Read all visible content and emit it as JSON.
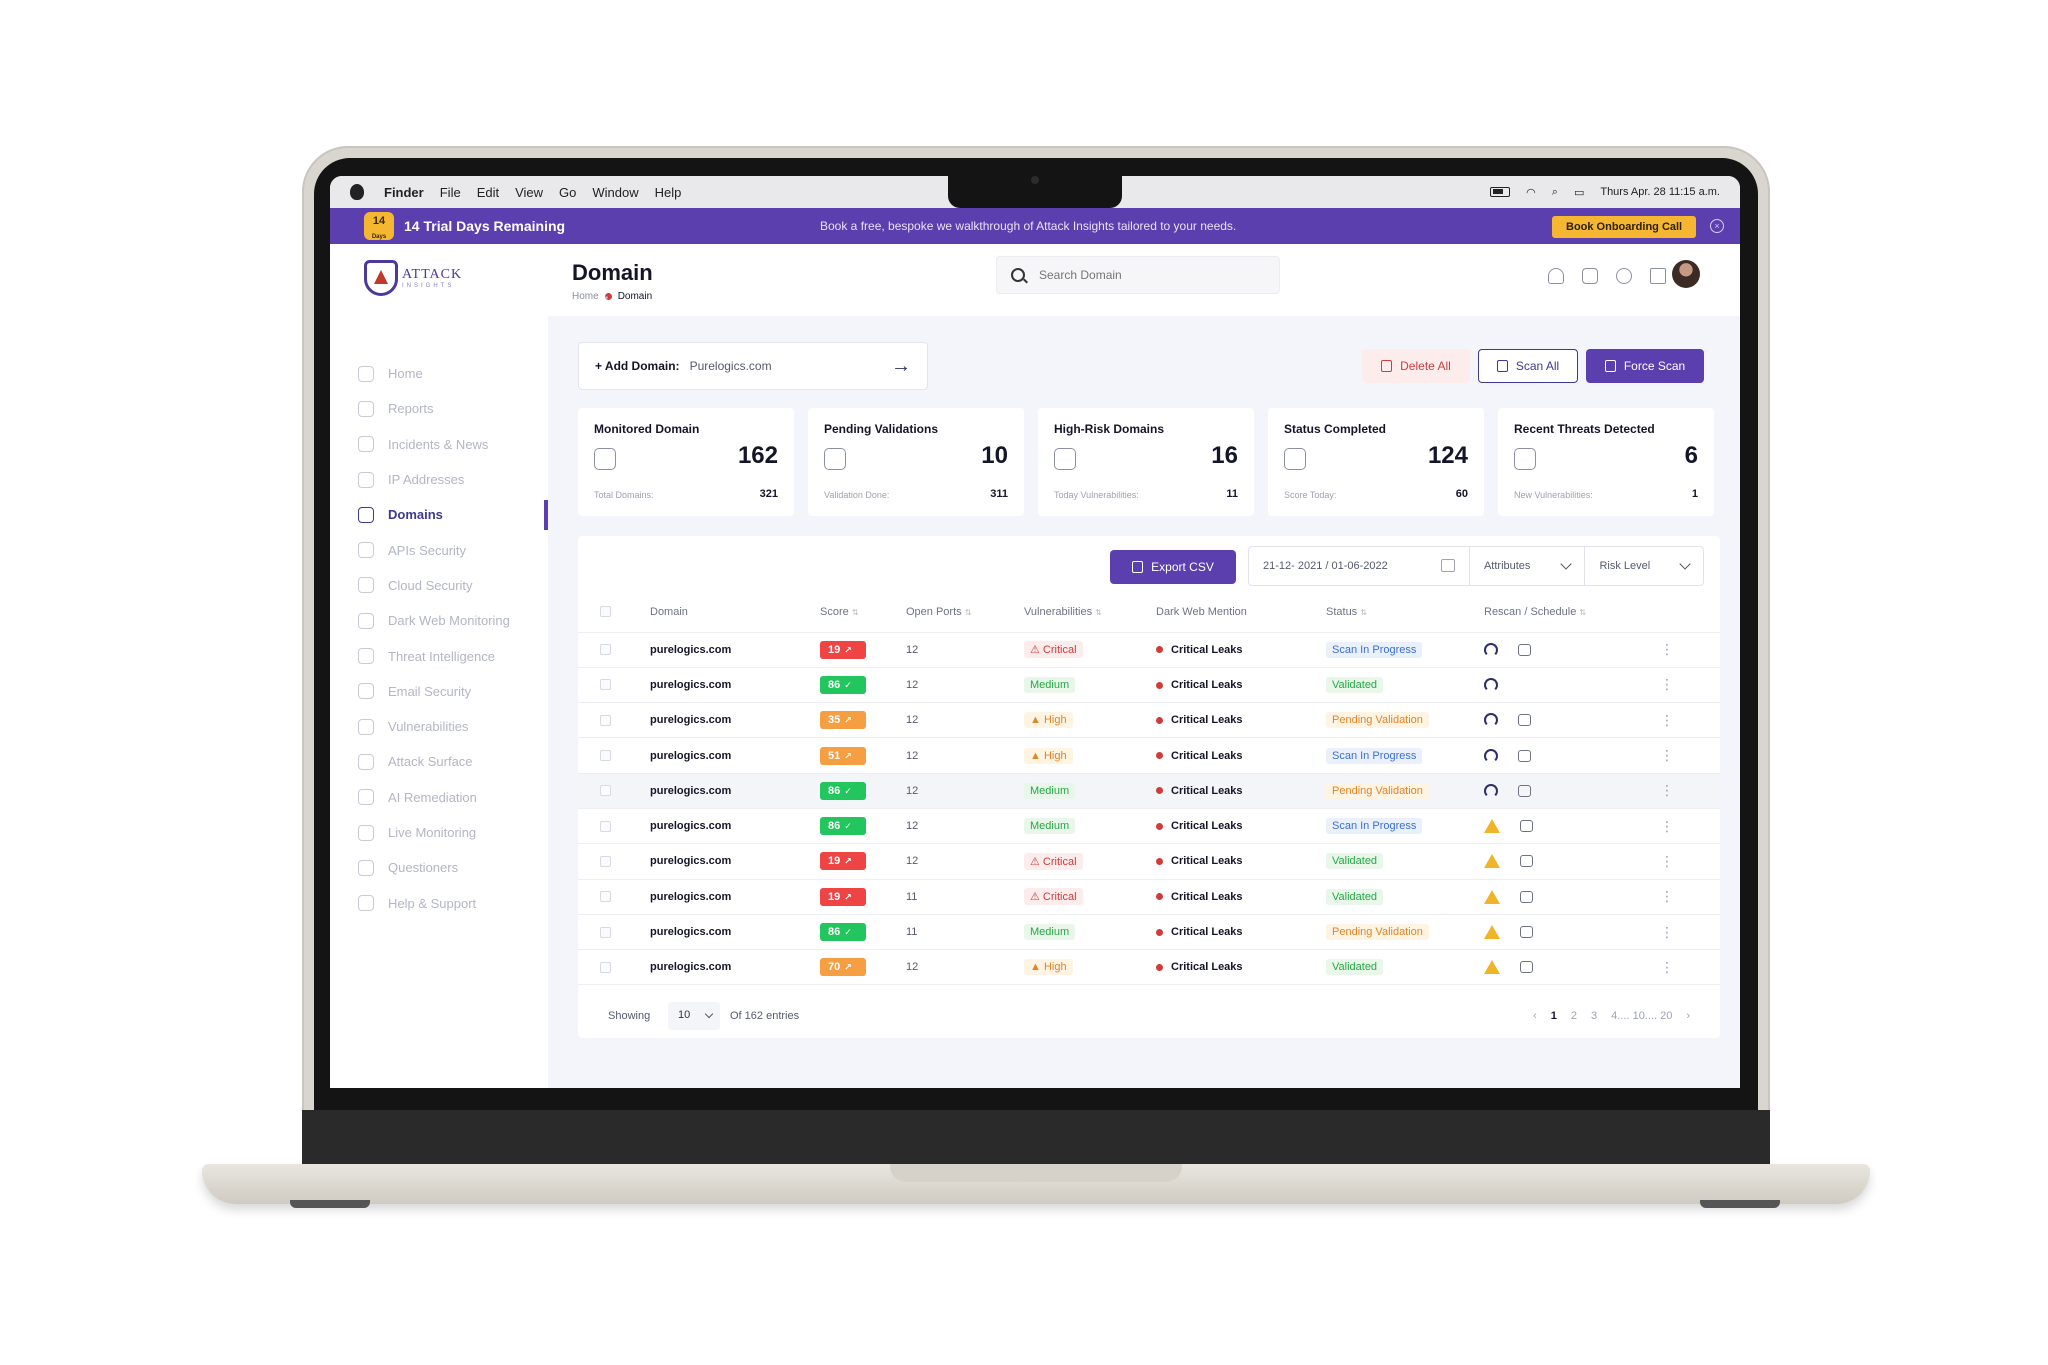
{
  "menubar": {
    "items": [
      "Finder",
      "File",
      "Edit",
      "View",
      "Go",
      "Window",
      "Help"
    ],
    "datetime": "Thurs Apr. 28 11:15 a.m."
  },
  "banner": {
    "badge_number": "14",
    "badge_unit": "Days",
    "trial_text": "14 Trial Days Remaining",
    "message": "Book a free, bespoke we walkthrough of Attack Insights tailored to your needs.",
    "cta": "Book Onboarding Call",
    "close": "×"
  },
  "logo": {
    "word": "ATTACK",
    "sub": "INSIGHTS"
  },
  "sidebar": {
    "items": [
      {
        "label": "Home",
        "active": false
      },
      {
        "label": "Reports",
        "active": false
      },
      {
        "label": "Incidents & News",
        "active": false
      },
      {
        "label": "IP Addresses",
        "active": false
      },
      {
        "label": "Domains",
        "active": true
      },
      {
        "label": "APIs Security",
        "active": false
      },
      {
        "label": "Cloud Security",
        "active": false
      },
      {
        "label": "Dark Web Monitoring",
        "active": false
      },
      {
        "label": "Threat Intelligence",
        "active": false
      },
      {
        "label": "Email Security",
        "active": false
      },
      {
        "label": "Vulnerabilities",
        "active": false
      },
      {
        "label": "Attack Surface",
        "active": false
      },
      {
        "label": "AI Remediation",
        "active": false
      },
      {
        "label": "Live Monitoring",
        "active": false
      },
      {
        "label": "Questioners",
        "active": false
      },
      {
        "label": "Help & Support",
        "active": false
      }
    ]
  },
  "header": {
    "title": "Domain",
    "breadcrumb": {
      "home": "Home",
      "current": "Domain",
      "separator": "•"
    },
    "search_placeholder": "Search Domain"
  },
  "add_domain": {
    "label": "+ Add Domain:",
    "value": "Purelogics.com",
    "arrow": "→"
  },
  "actions": {
    "delete_all": "Delete All",
    "scan_all": "Scan All",
    "force_scan": "Force Scan"
  },
  "stats": [
    {
      "title": "Monitored Domain",
      "value": "162",
      "foot_label": "Total Domains:",
      "foot_value": "321"
    },
    {
      "title": "Pending Validations",
      "value": "10",
      "foot_label": "Validation Done:",
      "foot_value": "311"
    },
    {
      "title": "High-Risk Domains",
      "value": "16",
      "foot_label": "Today Vulnerabilities:",
      "foot_value": "11"
    },
    {
      "title": "Status Completed",
      "value": "124",
      "foot_label": "Score Today:",
      "foot_value": "60"
    },
    {
      "title": "Recent Threats Detected",
      "value": "6",
      "foot_label": "New Vulnerabilities:",
      "foot_value": "1"
    }
  ],
  "toolbar": {
    "export": "Export CSV",
    "date_range": "21-12- 2021  /  01-06-2022",
    "attributes": "Attributes",
    "risk_level": "Risk Level"
  },
  "table": {
    "columns": [
      "Domain",
      "Score",
      "Open Ports",
      "Vulnerabilities",
      "Dark Web Mention",
      "Status",
      "Rescan / Schedule"
    ],
    "rows": [
      {
        "domain": "purelogics.com",
        "score": "19",
        "score_color": "#ef4444",
        "trend": "↗",
        "ports": "12",
        "vuln": "Critical",
        "vuln_type": "critical",
        "dark": "Critical Leaks",
        "status": "Scan In Progress",
        "status_type": "progress",
        "rescan": "refresh",
        "schedule": true
      },
      {
        "domain": "purelogics.com",
        "score": "86",
        "score_color": "#22c55e",
        "trend": "✓",
        "ports": "12",
        "vuln": "Medium",
        "vuln_type": "medium",
        "dark": "Critical Leaks",
        "status": "Validated",
        "status_type": "validated",
        "rescan": "refresh",
        "schedule": false
      },
      {
        "domain": "purelogics.com",
        "score": "35",
        "score_color": "#f59e42",
        "trend": "↗",
        "ports": "12",
        "vuln": "High",
        "vuln_type": "high",
        "dark": "Critical Leaks",
        "status": "Pending Validation",
        "status_type": "pending",
        "rescan": "refresh",
        "schedule": true
      },
      {
        "domain": "purelogics.com",
        "score": "51",
        "score_color": "#f59e42",
        "trend": "↗",
        "ports": "12",
        "vuln": "High",
        "vuln_type": "high",
        "dark": "Critical Leaks",
        "status": "Scan In Progress",
        "status_type": "progress",
        "rescan": "refresh",
        "schedule": true
      },
      {
        "domain": "purelogics.com",
        "score": "86",
        "score_color": "#22c55e",
        "trend": "✓",
        "ports": "12",
        "vuln": "Medium",
        "vuln_type": "medium",
        "dark": "Critical Leaks",
        "status": "Pending Validation",
        "status_type": "pending",
        "rescan": "refresh",
        "schedule": true
      },
      {
        "domain": "purelogics.com",
        "score": "86",
        "score_color": "#22c55e",
        "trend": "✓",
        "ports": "12",
        "vuln": "Medium",
        "vuln_type": "medium",
        "dark": "Critical Leaks",
        "status": "Scan In Progress",
        "status_type": "progress",
        "rescan": "warn",
        "schedule": true
      },
      {
        "domain": "purelogics.com",
        "score": "19",
        "score_color": "#ef4444",
        "trend": "↗",
        "ports": "12",
        "vuln": "Critical",
        "vuln_type": "critical",
        "dark": "Critical Leaks",
        "status": "Validated",
        "status_type": "validated",
        "rescan": "warn",
        "schedule": true
      },
      {
        "domain": "purelogics.com",
        "score": "19",
        "score_color": "#ef4444",
        "trend": "↗",
        "ports": "11",
        "vuln": "Critical",
        "vuln_type": "critical",
        "dark": "Critical Leaks",
        "status": "Validated",
        "status_type": "validated",
        "rescan": "warn",
        "schedule": true
      },
      {
        "domain": "purelogics.com",
        "score": "86",
        "score_color": "#22c55e",
        "trend": "✓",
        "ports": "11",
        "vuln": "Medium",
        "vuln_type": "medium",
        "dark": "Critical Leaks",
        "status": "Pending Validation",
        "status_type": "pending",
        "rescan": "warn",
        "schedule": true
      },
      {
        "domain": "purelogics.com",
        "score": "70",
        "score_color": "#f59e42",
        "trend": "↗",
        "ports": "12",
        "vuln": "High",
        "vuln_type": "high",
        "dark": "Critical Leaks",
        "status": "Validated",
        "status_type": "validated",
        "rescan": "warn",
        "schedule": true
      }
    ]
  },
  "footer": {
    "showing": "Showing",
    "per_page": "10",
    "of_entries": "Of 162 entries",
    "pages": [
      "‹",
      "1",
      "2",
      "3",
      "4.... 10.... 20",
      "›"
    ],
    "current_page": "1"
  }
}
